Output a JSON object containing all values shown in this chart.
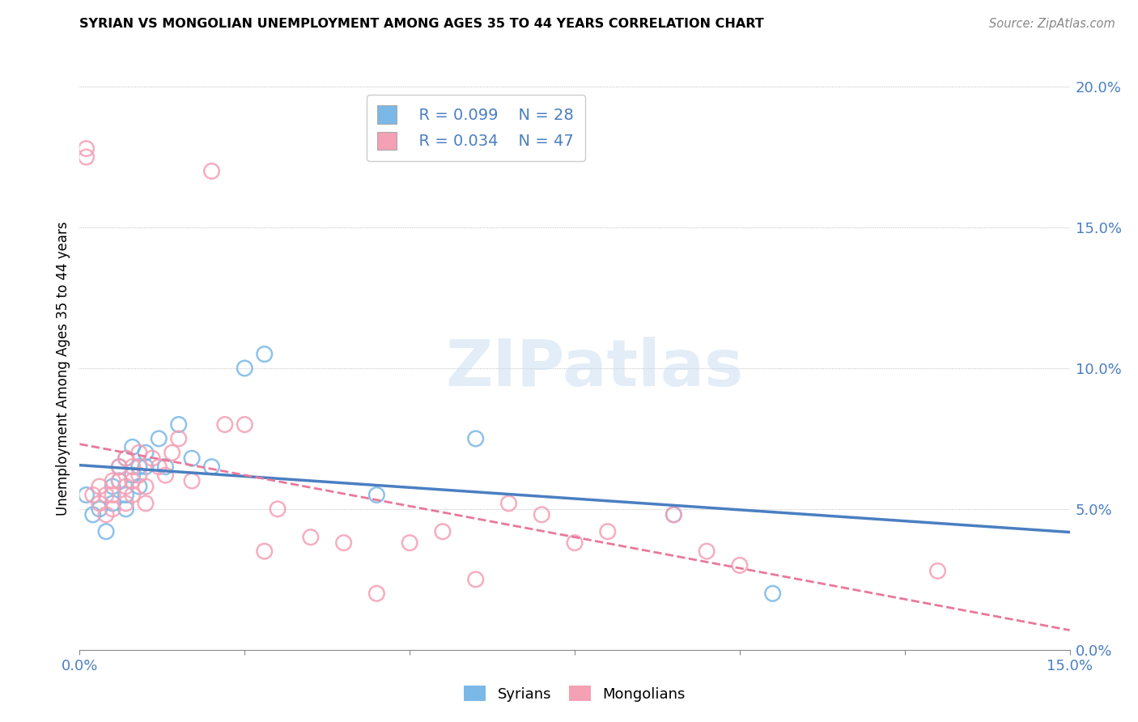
{
  "title": "SYRIAN VS MONGOLIAN UNEMPLOYMENT AMONG AGES 35 TO 44 YEARS CORRELATION CHART",
  "source": "Source: ZipAtlas.com",
  "ylabel": "Unemployment Among Ages 35 to 44 years",
  "xlim": [
    0.0,
    0.15
  ],
  "ylim": [
    0.0,
    0.2
  ],
  "xtick_positions": [
    0.0,
    0.025,
    0.05,
    0.075,
    0.1,
    0.125,
    0.15
  ],
  "xtick_labels": [
    "0.0%",
    "",
    "",
    "",
    "",
    "",
    "15.0%"
  ],
  "ytick_positions": [
    0.0,
    0.05,
    0.1,
    0.15,
    0.2
  ],
  "ytick_labels": [
    "0.0%",
    "5.0%",
    "10.0%",
    "15.0%",
    "20.0%"
  ],
  "blue_R": "R = 0.099",
  "blue_N": "N = 28",
  "pink_R": "R = 0.034",
  "pink_N": "N = 47",
  "blue_color": "#7ab8e8",
  "pink_color": "#f4a0b5",
  "blue_line_color": "#4a7fc1",
  "pink_line_color": "#e8799a",
  "blue_label": "Syrians",
  "pink_label": "Mongolians",
  "watermark": "ZIPatlas",
  "syrians_x": [
    0.001,
    0.002,
    0.003,
    0.004,
    0.005,
    0.005,
    0.006,
    0.006,
    0.007,
    0.007,
    0.007,
    0.008,
    0.008,
    0.009,
    0.009,
    0.01,
    0.01,
    0.012,
    0.013,
    0.015,
    0.017,
    0.02,
    0.025,
    0.028,
    0.045,
    0.06,
    0.09,
    0.105
  ],
  "syrians_y": [
    0.055,
    0.048,
    0.05,
    0.042,
    0.058,
    0.052,
    0.065,
    0.06,
    0.068,
    0.055,
    0.05,
    0.062,
    0.072,
    0.065,
    0.058,
    0.07,
    0.065,
    0.075,
    0.065,
    0.08,
    0.068,
    0.065,
    0.1,
    0.105,
    0.055,
    0.075,
    0.048,
    0.02
  ],
  "mongolians_x": [
    0.001,
    0.001,
    0.002,
    0.003,
    0.003,
    0.004,
    0.004,
    0.005,
    0.005,
    0.005,
    0.006,
    0.006,
    0.007,
    0.007,
    0.007,
    0.008,
    0.008,
    0.008,
    0.009,
    0.009,
    0.01,
    0.01,
    0.011,
    0.012,
    0.013,
    0.014,
    0.015,
    0.017,
    0.02,
    0.022,
    0.025,
    0.028,
    0.03,
    0.035,
    0.04,
    0.045,
    0.05,
    0.055,
    0.06,
    0.065,
    0.07,
    0.075,
    0.08,
    0.09,
    0.095,
    0.1,
    0.13
  ],
  "mongolians_y": [
    0.175,
    0.178,
    0.055,
    0.058,
    0.052,
    0.055,
    0.048,
    0.06,
    0.055,
    0.05,
    0.065,
    0.06,
    0.068,
    0.058,
    0.052,
    0.065,
    0.06,
    0.055,
    0.07,
    0.062,
    0.058,
    0.052,
    0.068,
    0.065,
    0.062,
    0.07,
    0.075,
    0.06,
    0.17,
    0.08,
    0.08,
    0.035,
    0.05,
    0.04,
    0.038,
    0.02,
    0.038,
    0.042,
    0.025,
    0.052,
    0.048,
    0.038,
    0.042,
    0.048,
    0.035,
    0.03,
    0.028
  ]
}
